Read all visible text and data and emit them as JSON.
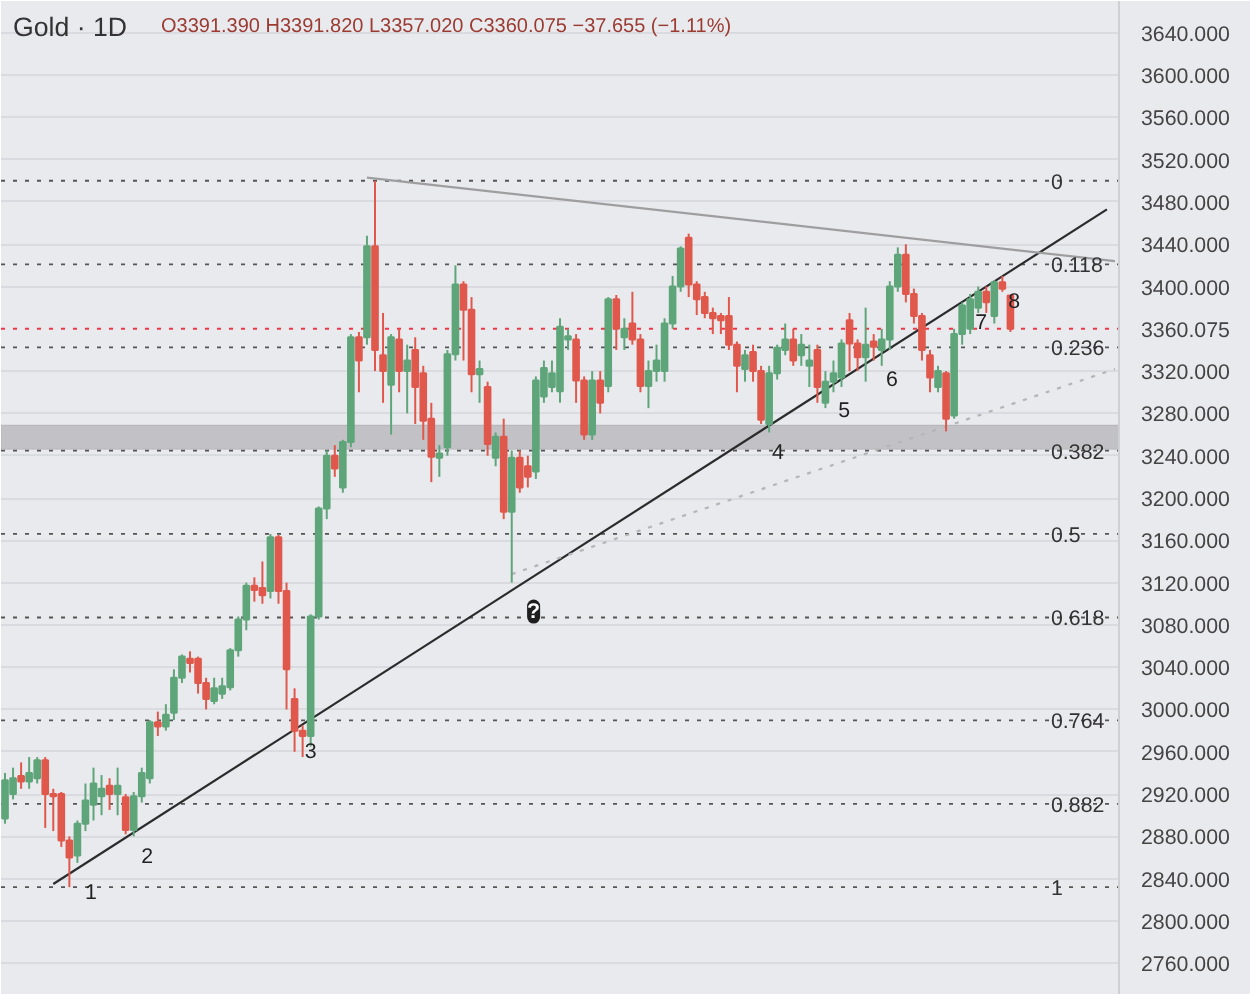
{
  "chart_data": {
    "type": "candlestick",
    "title": "Gold · 1D",
    "subtitle": "O3391.390 H3391.820 L3357.020 C3360.075 −37.655 (−1.11%)",
    "categories": [
      null,
      null,
      null,
      null,
      null,
      null,
      null,
      null,
      null,
      null,
      null,
      null,
      null,
      null,
      null,
      null,
      null,
      null,
      null,
      null,
      null,
      null,
      null,
      null,
      null,
      null,
      null,
      null,
      null,
      null,
      null,
      null,
      null,
      null,
      null,
      null,
      null,
      null,
      null,
      null,
      null,
      null,
      null,
      null,
      null,
      null,
      null,
      null,
      null,
      null,
      null,
      null,
      null,
      null,
      null,
      null,
      null,
      null,
      null,
      null,
      null,
      null,
      null,
      null,
      null,
      null,
      null,
      null,
      null,
      null,
      null,
      null,
      null,
      null,
      null,
      null,
      null,
      null,
      null,
      null,
      null,
      null,
      null,
      null,
      null,
      null,
      null,
      null,
      null,
      null,
      null,
      null,
      null,
      null,
      null,
      null,
      null,
      null,
      null,
      null,
      null,
      null,
      null,
      null,
      null,
      null,
      null,
      null,
      null,
      null,
      null,
      null,
      null,
      null,
      null,
      null,
      null,
      null,
      null,
      null,
      null,
      null,
      null,
      null,
      null,
      null,
      null,
      null,
      null,
      null,
      null,
      null,
      null,
      null,
      null,
      null,
      null,
      null,
      null
    ],
    "ohlc": [
      [
        2897,
        2940,
        2892,
        2933
      ],
      [
        2920,
        2945,
        2915,
        2935
      ],
      [
        2937,
        2950,
        2925,
        2932
      ],
      [
        2932,
        2955,
        2925,
        2940
      ],
      [
        2935,
        2955,
        2930,
        2952
      ],
      [
        2952,
        2955,
        2888,
        2920
      ],
      [
        2920,
        2925,
        2885,
        2918
      ],
      [
        2920,
        2922,
        2870,
        2876
      ],
      [
        2876,
        2880,
        2832,
        2860
      ],
      [
        2862,
        2895,
        2855,
        2892
      ],
      [
        2892,
        2930,
        2885,
        2914
      ],
      [
        2910,
        2945,
        2895,
        2930
      ],
      [
        2918,
        2938,
        2900,
        2925
      ],
      [
        2928,
        2935,
        2905,
        2920
      ],
      [
        2920,
        2945,
        2900,
        2928
      ],
      [
        2917,
        2920,
        2882,
        2886
      ],
      [
        2886,
        2922,
        2880,
        2918
      ],
      [
        2918,
        2945,
        2912,
        2940
      ],
      [
        2935,
        2990,
        2930,
        2988
      ],
      [
        2988,
        2998,
        2975,
        2984
      ],
      [
        2984,
        3005,
        2980,
        2995
      ],
      [
        2997,
        3038,
        2990,
        3030
      ],
      [
        3030,
        3052,
        3025,
        3050
      ],
      [
        3048,
        3055,
        3035,
        3044
      ],
      [
        3048,
        3050,
        3015,
        3025
      ],
      [
        3025,
        3030,
        3000,
        3010
      ],
      [
        3008,
        3030,
        3005,
        3020
      ],
      [
        3015,
        3030,
        3010,
        3022
      ],
      [
        3021,
        3058,
        3018,
        3056
      ],
      [
        3056,
        3088,
        3050,
        3085
      ],
      [
        3085,
        3120,
        3075,
        3117
      ],
      [
        3117,
        3125,
        3102,
        3113
      ],
      [
        3115,
        3140,
        3100,
        3108
      ],
      [
        3112,
        3166,
        3105,
        3163
      ],
      [
        3163,
        3165,
        3100,
        3112
      ],
      [
        3112,
        3120,
        3000,
        3038
      ],
      [
        3010,
        3020,
        2960,
        2980
      ],
      [
        2980,
        2985,
        2955,
        2975
      ],
      [
        2975,
        3090,
        2965,
        3088
      ],
      [
        3088,
        3192,
        3085,
        3190
      ],
      [
        3190,
        3245,
        3180,
        3240
      ],
      [
        3240,
        3250,
        3220,
        3228
      ],
      [
        3210,
        3255,
        3205,
        3253
      ],
      [
        3253,
        3355,
        3248,
        3352
      ],
      [
        3352,
        3357,
        3300,
        3330
      ],
      [
        3352,
        3448,
        3345,
        3438
      ],
      [
        3438,
        3500,
        3320,
        3340
      ],
      [
        3335,
        3375,
        3290,
        3320
      ],
      [
        3307,
        3355,
        3260,
        3352
      ],
      [
        3350,
        3360,
        3300,
        3320
      ],
      [
        3320,
        3345,
        3280,
        3330
      ],
      [
        3340,
        3352,
        3270,
        3305
      ],
      [
        3318,
        3325,
        3255,
        3273
      ],
      [
        3275,
        3290,
        3215,
        3239
      ],
      [
        3238,
        3250,
        3220,
        3242
      ],
      [
        3248,
        3340,
        3240,
        3336
      ],
      [
        3336,
        3420,
        3330,
        3402
      ],
      [
        3402,
        3405,
        3330,
        3378
      ],
      [
        3378,
        3390,
        3300,
        3317
      ],
      [
        3317,
        3330,
        3290,
        3322
      ],
      [
        3305,
        3310,
        3240,
        3251
      ],
      [
        3238,
        3262,
        3230,
        3258
      ],
      [
        3258,
        3275,
        3180,
        3187
      ],
      [
        3187,
        3245,
        3120,
        3238
      ],
      [
        3238,
        3245,
        3205,
        3210
      ],
      [
        3230,
        3240,
        3210,
        3220
      ],
      [
        3225,
        3315,
        3218,
        3311
      ],
      [
        3296,
        3330,
        3290,
        3323
      ],
      [
        3305,
        3330,
        3300,
        3318
      ],
      [
        3301,
        3370,
        3290,
        3362
      ],
      [
        3350,
        3360,
        3340,
        3353
      ],
      [
        3350,
        3355,
        3290,
        3311
      ],
      [
        3311,
        3315,
        3255,
        3260
      ],
      [
        3260,
        3320,
        3255,
        3311
      ],
      [
        3311,
        3320,
        3280,
        3290
      ],
      [
        3306,
        3390,
        3300,
        3388
      ],
      [
        3388,
        3392,
        3340,
        3360
      ],
      [
        3352,
        3370,
        3340,
        3360
      ],
      [
        3365,
        3395,
        3345,
        3350
      ],
      [
        3350,
        3355,
        3300,
        3306
      ],
      [
        3306,
        3330,
        3285,
        3320
      ],
      [
        3320,
        3345,
        3310,
        3330
      ],
      [
        3320,
        3370,
        3310,
        3365
      ],
      [
        3365,
        3410,
        3360,
        3400
      ],
      [
        3400,
        3438,
        3395,
        3436
      ],
      [
        3446,
        3450,
        3390,
        3402
      ],
      [
        3402,
        3405,
        3373,
        3388
      ],
      [
        3390,
        3395,
        3370,
        3375
      ],
      [
        3375,
        3380,
        3355,
        3370
      ],
      [
        3372,
        3375,
        3355,
        3368
      ],
      [
        3372,
        3390,
        3340,
        3345
      ],
      [
        3345,
        3348,
        3300,
        3325
      ],
      [
        3322,
        3340,
        3310,
        3335
      ],
      [
        3338,
        3345,
        3310,
        3320
      ],
      [
        3320,
        3325,
        3270,
        3274
      ],
      [
        3270,
        3325,
        3262,
        3318
      ],
      [
        3318,
        3345,
        3312,
        3342
      ],
      [
        3340,
        3365,
        3335,
        3350
      ],
      [
        3350,
        3360,
        3325,
        3330
      ],
      [
        3335,
        3355,
        3325,
        3345
      ],
      [
        3325,
        3345,
        3305,
        3330
      ],
      [
        3340,
        3345,
        3290,
        3305
      ],
      [
        3290,
        3320,
        3285,
        3310
      ],
      [
        3310,
        3330,
        3300,
        3318
      ],
      [
        3314,
        3350,
        3305,
        3346
      ],
      [
        3368,
        3375,
        3320,
        3346
      ],
      [
        3346,
        3350,
        3320,
        3333
      ],
      [
        3333,
        3380,
        3310,
        3345
      ],
      [
        3348,
        3355,
        3330,
        3343
      ],
      [
        3340,
        3360,
        3325,
        3350
      ],
      [
        3350,
        3405,
        3340,
        3400
      ],
      [
        3400,
        3437,
        3395,
        3430
      ],
      [
        3430,
        3440,
        3385,
        3393
      ],
      [
        3393,
        3398,
        3365,
        3372
      ],
      [
        3372,
        3375,
        3330,
        3340
      ],
      [
        3335,
        3340,
        3300,
        3314
      ],
      [
        3305,
        3325,
        3300,
        3320
      ],
      [
        3318,
        3320,
        3263,
        3275
      ],
      [
        3278,
        3360,
        3275,
        3355
      ],
      [
        3355,
        3385,
        3345,
        3382
      ],
      [
        3360,
        3393,
        3355,
        3388
      ],
      [
        3380,
        3400,
        3375,
        3395
      ],
      [
        3395,
        3400,
        3375,
        3385
      ],
      [
        3372,
        3406,
        3365,
        3404
      ],
      [
        3404,
        3410,
        3395,
        3398
      ],
      [
        3391.39,
        3391.82,
        3357.02,
        3360.075
      ],
      null,
      null,
      null,
      null,
      null,
      null,
      null,
      null,
      null,
      null,
      null,
      null,
      null
    ],
    "ylim": [
      2730,
      3670
    ],
    "yticks": [
      {
        "value": 2760,
        "label": "2760.000"
      },
      {
        "value": 2800,
        "label": "2800.000"
      },
      {
        "value": 2840,
        "label": "2840.000"
      },
      {
        "value": 2880,
        "label": "2880.000"
      },
      {
        "value": 2920,
        "label": "2920.000"
      },
      {
        "value": 2960,
        "label": "2960.000"
      },
      {
        "value": 3000,
        "label": "3000.000"
      },
      {
        "value": 3040,
        "label": "3040.000"
      },
      {
        "value": 3080,
        "label": "3080.000"
      },
      {
        "value": 3120,
        "label": "3120.000"
      },
      {
        "value": 3160,
        "label": "3160.000"
      },
      {
        "value": 3200,
        "label": "3200.000"
      },
      {
        "value": 3240,
        "label": "3240.000"
      },
      {
        "value": 3280,
        "label": "3280.000"
      },
      {
        "value": 3320,
        "label": "3320.000"
      },
      {
        "value": 3400,
        "label": "3400.000"
      },
      {
        "value": 3440,
        "label": "3440.000"
      },
      {
        "value": 3480,
        "label": "3480.000"
      },
      {
        "value": 3520,
        "label": "3520.000"
      },
      {
        "value": 3560,
        "label": "3560.000"
      },
      {
        "value": 3600,
        "label": "3600.000"
      },
      {
        "value": 3640,
        "label": "3640.000"
      }
    ],
    "tick_labels": "y",
    "grid": "y",
    "series": [
      {
        "type": "line",
        "color": "#2b2b2b",
        "line_style": "solid",
        "values": [
          null,
          null,
          null,
          null,
          null,
          null,
          2835,
          null,
          null,
          null,
          null,
          null,
          null,
          null,
          null,
          null,
          null,
          null,
          null,
          null,
          null,
          null,
          null,
          null,
          null,
          null,
          null,
          null,
          null,
          null,
          null,
          null,
          null,
          null,
          null,
          null,
          null,
          null,
          null,
          null,
          null,
          null,
          null,
          null,
          null,
          null,
          null,
          null,
          null,
          null,
          null,
          null,
          null,
          null,
          null,
          null,
          null,
          null,
          null,
          null,
          null,
          null,
          null,
          null,
          null,
          null,
          null,
          null,
          null,
          null,
          null,
          null,
          null,
          null,
          null,
          null,
          null,
          null,
          null,
          null,
          null,
          null,
          null,
          null,
          null,
          null,
          null,
          null,
          null,
          null,
          null,
          null,
          null,
          null,
          null,
          null,
          null,
          null,
          null,
          null,
          null,
          null,
          null,
          null,
          null,
          null,
          null,
          null,
          null,
          null,
          null,
          null,
          null,
          null,
          null,
          null,
          null,
          null,
          null,
          null,
          null,
          null,
          null,
          null,
          null,
          null,
          null,
          null,
          null,
          null,
          null,
          null,
          null,
          null,
          null,
          null,
          null,
          3473,
          null
        ]
      },
      {
        "type": "line",
        "color": "#9e9e9e",
        "line_style": "solid",
        "values": [
          null,
          null,
          null,
          null,
          null,
          null,
          null,
          null,
          null,
          null,
          null,
          null,
          null,
          null,
          null,
          null,
          null,
          null,
          null,
          null,
          null,
          null,
          null,
          null,
          null,
          null,
          null,
          null,
          null,
          null,
          null,
          null,
          null,
          null,
          null,
          null,
          null,
          null,
          null,
          null,
          null,
          null,
          null,
          null,
          null,
          3503,
          null,
          null,
          null,
          null,
          null,
          null,
          null,
          null,
          null,
          null,
          null,
          null,
          null,
          null,
          null,
          null,
          null,
          null,
          null,
          null,
          null,
          null,
          null,
          null,
          null,
          null,
          null,
          null,
          null,
          null,
          null,
          null,
          null,
          null,
          null,
          null,
          null,
          null,
          null,
          null,
          null,
          null,
          null,
          null,
          null,
          null,
          null,
          null,
          null,
          null,
          null,
          null,
          null,
          null,
          null,
          null,
          null,
          null,
          null,
          null,
          null,
          null,
          null,
          null,
          null,
          null,
          null,
          null,
          null,
          null,
          null,
          null,
          null,
          null,
          null,
          null,
          null,
          null,
          null,
          null,
          null,
          null,
          null,
          null,
          null,
          null,
          null,
          null,
          null,
          null,
          null,
          null,
          3424
        ]
      },
      {
        "type": "line",
        "color": "#b5b5b5",
        "line_style": "dotted",
        "values": [
          null,
          null,
          null,
          null,
          null,
          null,
          null,
          null,
          null,
          null,
          null,
          null,
          null,
          null,
          null,
          null,
          null,
          null,
          null,
          null,
          null,
          null,
          null,
          null,
          null,
          null,
          null,
          null,
          null,
          null,
          null,
          null,
          null,
          null,
          null,
          null,
          null,
          null,
          null,
          null,
          null,
          null,
          null,
          null,
          null,
          null,
          null,
          null,
          null,
          null,
          null,
          null,
          null,
          null,
          null,
          null,
          null,
          null,
          null,
          null,
          null,
          null,
          null,
          3128,
          null,
          null,
          null,
          null,
          null,
          null,
          null,
          null,
          null,
          null,
          null,
          null,
          null,
          null,
          null,
          null,
          null,
          null,
          null,
          null,
          null,
          null,
          null,
          null,
          null,
          null,
          null,
          null,
          null,
          null,
          null,
          null,
          null,
          null,
          null,
          null,
          null,
          null,
          null,
          null,
          null,
          null,
          null,
          null,
          null,
          null,
          null,
          null,
          null,
          null,
          null,
          null,
          null,
          null,
          null,
          null,
          null,
          null,
          null,
          null,
          null,
          null,
          null,
          null,
          null,
          null,
          null,
          null,
          null,
          null,
          null,
          null,
          null,
          null,
          3322
        ]
      }
    ],
    "ref_lines": [
      {
        "axis": "y",
        "value": 3500,
        "color": "#555555",
        "line_style": "dotted"
      },
      {
        "axis": "y",
        "value": 3421,
        "color": "#555555",
        "line_style": "dotted"
      },
      {
        "axis": "y",
        "value": 3342.4,
        "color": "#555555",
        "line_style": "dotted"
      },
      {
        "axis": "y",
        "value": 3244.8,
        "color": "#555555",
        "line_style": "dotted"
      },
      {
        "axis": "y",
        "value": 3166,
        "color": "#555555",
        "line_style": "dotted"
      },
      {
        "axis": "y",
        "value": 3087,
        "color": "#555555",
        "line_style": "dotted"
      },
      {
        "axis": "y",
        "value": 2989.7,
        "color": "#555555",
        "line_style": "dotted"
      },
      {
        "axis": "y",
        "value": 2910.8,
        "color": "#555555",
        "line_style": "dotted"
      },
      {
        "axis": "y",
        "value": 2832,
        "color": "#555555",
        "line_style": "dotted"
      },
      {
        "axis": "y",
        "value": 3360.075,
        "label": "3360.075",
        "color": "#f23645",
        "line_style": "dotted"
      }
    ],
    "bands": [
      {
        "axis": "y",
        "from": 3246,
        "to": 3269,
        "color": "#b8b8bc"
      }
    ],
    "annotations": [
      {
        "text": "0",
        "y": 3500
      },
      {
        "text": "0.118",
        "y": 3421
      },
      {
        "text": "0.236",
        "y": 3342.4
      },
      {
        "text": "0.382",
        "y": 3244.8
      },
      {
        "text": "0.5",
        "y": 3166
      },
      {
        "text": "0.618",
        "y": 3087
      },
      {
        "text": "0.764",
        "y": 2989.7
      },
      {
        "text": "0.882",
        "y": 2910.8
      },
      {
        "text": "1",
        "y": 2832
      },
      {
        "text": "1",
        "y": 2853
      },
      {
        "text": "2",
        "y": 2887
      },
      {
        "text": "3",
        "y": 2986
      },
      {
        "text": "4",
        "y": 3269
      },
      {
        "text": "5",
        "y": 3309
      },
      {
        "text": "6",
        "y": 3338
      },
      {
        "text": "7",
        "y": 3392
      },
      {
        "text": "8",
        "y": 3412
      },
      {
        "text": "?",
        "y": 3121
      }
    ]
  }
}
